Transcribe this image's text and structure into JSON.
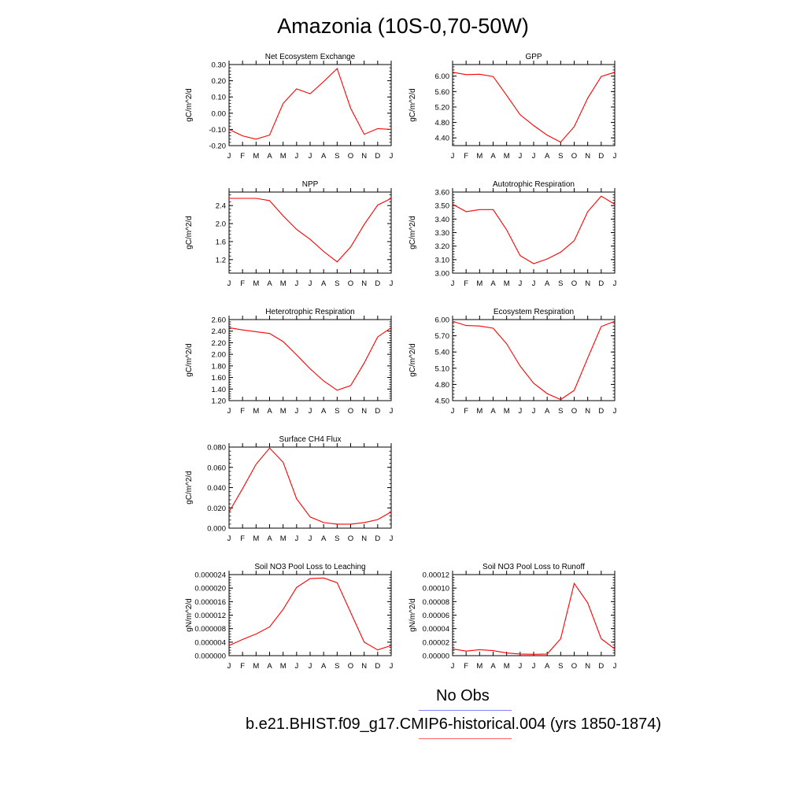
{
  "title": "Amazonia (10S-0,70-50W)",
  "months": [
    "J",
    "F",
    "M",
    "A",
    "M",
    "J",
    "J",
    "A",
    "S",
    "O",
    "N",
    "D",
    "J"
  ],
  "chart_data": [
    {
      "type": "line",
      "title": "Net Ecosystem Exchange",
      "ylabel": "gC/m^2/d",
      "ylim": [
        -0.2,
        0.3
      ],
      "yticks": [
        -0.2,
        -0.1,
        0.0,
        0.1,
        0.2,
        0.3
      ],
      "ytick_labels": [
        "-0.20",
        "-0.10",
        "0.00",
        "0.10",
        "0.20",
        "0.30"
      ],
      "values": [
        -0.1,
        -0.14,
        -0.16,
        -0.135,
        0.06,
        0.15,
        0.12,
        0.195,
        0.275,
        0.03,
        -0.13,
        -0.095,
        -0.1
      ]
    },
    {
      "type": "line",
      "title": "GPP",
      "ylabel": "gC/m^2/d",
      "ylim": [
        4.2,
        6.3
      ],
      "yticks": [
        4.4,
        4.8,
        5.2,
        5.6,
        6.0
      ],
      "ytick_labels": [
        "4.40",
        "4.80",
        "5.20",
        "5.60",
        "6.00"
      ],
      "values": [
        6.1,
        6.04,
        6.05,
        5.99,
        5.5,
        5.0,
        4.72,
        4.47,
        4.29,
        4.69,
        5.43,
        5.99,
        6.1
      ]
    },
    {
      "type": "line",
      "title": "NPP",
      "ylabel": "gC/m^2/d",
      "ylim": [
        0.9,
        2.7
      ],
      "yticks": [
        1.2,
        1.6,
        2.0,
        2.4
      ],
      "ytick_labels": [
        "1.2",
        "1.6",
        "2.0",
        "2.4"
      ],
      "values": [
        2.56,
        2.56,
        2.56,
        2.51,
        2.17,
        1.87,
        1.65,
        1.38,
        1.15,
        1.48,
        1.98,
        2.41,
        2.56
      ]
    },
    {
      "type": "line",
      "title": "Autotrophic Respiration",
      "ylabel": "gC/m^2/d",
      "ylim": [
        3.0,
        3.6
      ],
      "yticks": [
        3.0,
        3.1,
        3.2,
        3.3,
        3.4,
        3.5,
        3.6
      ],
      "ytick_labels": [
        "3.00",
        "3.10",
        "3.20",
        "3.30",
        "3.40",
        "3.50",
        "3.60"
      ],
      "values": [
        3.51,
        3.455,
        3.47,
        3.47,
        3.32,
        3.13,
        3.07,
        3.105,
        3.155,
        3.24,
        3.455,
        3.57,
        3.51
      ]
    },
    {
      "type": "line",
      "title": "Heterotrophic Respiration",
      "ylabel": "gC/m^2/d",
      "ylim": [
        1.2,
        2.6
      ],
      "yticks": [
        1.2,
        1.4,
        1.6,
        1.8,
        2.0,
        2.2,
        2.4,
        2.6
      ],
      "ytick_labels": [
        "1.20",
        "1.40",
        "1.60",
        "1.80",
        "2.00",
        "2.20",
        "2.40",
        "2.60"
      ],
      "values": [
        2.46,
        2.42,
        2.39,
        2.36,
        2.22,
        1.99,
        1.75,
        1.54,
        1.38,
        1.46,
        1.85,
        2.3,
        2.46
      ]
    },
    {
      "type": "line",
      "title": "Ecosystem Respiration",
      "ylabel": "gC/m^2/d",
      "ylim": [
        4.5,
        6.0
      ],
      "yticks": [
        4.5,
        4.8,
        5.1,
        5.4,
        5.7,
        6.0
      ],
      "ytick_labels": [
        "4.50",
        "4.80",
        "5.10",
        "5.40",
        "5.70",
        "6.00"
      ],
      "values": [
        5.97,
        5.89,
        5.88,
        5.84,
        5.55,
        5.14,
        4.82,
        4.63,
        4.52,
        4.69,
        5.29,
        5.87,
        5.97
      ]
    },
    {
      "type": "line",
      "title": "Surface CH4 Flux",
      "ylabel": "gC/m^2/d",
      "ylim": [
        0.0,
        0.08
      ],
      "yticks": [
        0.0,
        0.02,
        0.04,
        0.06,
        0.08
      ],
      "ytick_labels": [
        "0.000",
        "0.020",
        "0.040",
        "0.060",
        "0.080"
      ],
      "values": [
        0.016,
        0.039,
        0.063,
        0.079,
        0.065,
        0.029,
        0.011,
        0.0055,
        0.004,
        0.004,
        0.0055,
        0.0085,
        0.016
      ]
    },
    {
      "type": "line",
      "title": "Soil NO3 Pool Loss to Leaching",
      "ylabel": "gN/m^2/d",
      "ylim": [
        0.0,
        2.4e-05
      ],
      "yticks": [
        0.0,
        4e-06,
        8e-06,
        1.2e-05,
        1.6e-05,
        2e-05,
        2.4e-05
      ],
      "ytick_labels": [
        "0.000000",
        "0.000004",
        "0.000008",
        "0.000012",
        "0.000016",
        "0.000020",
        "0.000024"
      ],
      "values": [
        3e-06,
        4.8e-06,
        6.4e-06,
        8.5e-06,
        1.37e-05,
        2.02e-05,
        2.28e-05,
        2.3e-05,
        2.16e-05,
        1.28e-05,
        4e-06,
        1.7e-06,
        3e-06
      ]
    },
    {
      "type": "line",
      "title": "Soil NO3 Pool Loss to Runoff",
      "ylabel": "gN/m^2/d",
      "ylim": [
        0.0,
        0.00012
      ],
      "yticks": [
        0.0,
        2e-05,
        4e-05,
        6e-05,
        8e-05,
        0.0001,
        0.00012
      ],
      "ytick_labels": [
        "0.00000",
        "0.00002",
        "0.00004",
        "0.00006",
        "0.00008",
        "0.00010",
        "0.00012"
      ],
      "values": [
        1e-05,
        6.8e-06,
        8.8e-06,
        7.5e-06,
        4e-06,
        2.5e-06,
        2e-06,
        2.5e-06,
        2.5e-05,
        0.000107,
        7.8e-05,
        2.5e-05,
        1e-05
      ]
    }
  ],
  "legend": {
    "obs_label": "No Obs",
    "obs_color": "#8080ff",
    "case_label": "b.e21.BHIST.f09_g17.CMIP6-historical.004 (yrs 1850-1874)",
    "case_color": "#ff6060"
  },
  "line_color": "#ff0000"
}
